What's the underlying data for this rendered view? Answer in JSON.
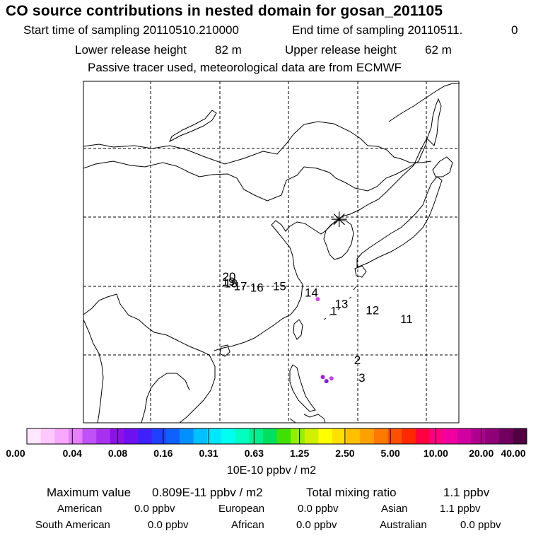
{
  "header": {
    "title": "CO  source contributions in nested domain for gosan_201105",
    "start_label": "Start time of sampling 20110510.210000",
    "end_label": "End time of sampling 20110511.",
    "end_suffix": "0",
    "lower_label": "Lower release height",
    "lower_value": "82 m",
    "upper_label": "Upper release height",
    "upper_value": "62 m",
    "tracer_note": "Passive tracer used, meteorological data are from ECMWF"
  },
  "trajectory_points": [
    {
      "label": "20",
      "lon": 102.0,
      "lat": 24.3
    },
    {
      "label": "19",
      "lon": 101.9,
      "lat": 23.6
    },
    {
      "label": "18",
      "lon": 102.4,
      "lat": 23.3
    },
    {
      "label": "17",
      "lon": 104.5,
      "lat": 22.9
    },
    {
      "label": "16",
      "lon": 108.1,
      "lat": 22.7
    },
    {
      "label": "15",
      "lon": 113.1,
      "lat": 22.9
    },
    {
      "label": "14",
      "lon": 120.1,
      "lat": 22.0
    },
    {
      "label": "13",
      "lon": 126.7,
      "lat": 20.3
    },
    {
      "label": "1",
      "lon": 125.0,
      "lat": 19.3
    },
    {
      "label": "12",
      "lon": 133.5,
      "lat": 19.4
    },
    {
      "label": "11",
      "lon": 141.0,
      "lat": 18.1
    },
    {
      "label": "2",
      "lon": 130.2,
      "lat": 12.1
    },
    {
      "label": "3",
      "lon": 131.2,
      "lat": 9.5
    }
  ],
  "receptor": {
    "name": "gosan",
    "lon": 126.2,
    "lat": 33.3
  },
  "colorbar": {
    "colors": [
      "#ffe8ff",
      "#ffc8ff",
      "#f8a8ff",
      "#e680ff",
      "#c050f8",
      "#a830f0",
      "#8c10e8",
      "#6e10f0",
      "#4020f8",
      "#2040ff",
      "#1060ff",
      "#0090ff",
      "#00c0ff",
      "#00e8ff",
      "#00fff0",
      "#00ffc0",
      "#00f090",
      "#00e060",
      "#40e000",
      "#90f000",
      "#d0f000",
      "#ffff00",
      "#ffe000",
      "#ffc000",
      "#ffa000",
      "#ff7800",
      "#ff5000",
      "#ff2800",
      "#ff0040",
      "#ff0080",
      "#f000a0",
      "#d000a0",
      "#b00090",
      "#900078",
      "#700060",
      "#500040"
    ],
    "tick_labels": [
      "0.00",
      "0.04",
      "0.08",
      "0.16",
      "0.31",
      "0.63",
      "1.25",
      "2.50",
      "5.00",
      "10.00",
      "20.00",
      "40.00"
    ],
    "unit": "10E-10 ppbv / m2"
  },
  "footer": {
    "max_label": "Maximum value",
    "max_value": "0.809E-11 ppbv / m2",
    "total_label": "Total mixing ratio",
    "total_value": "1.1 ppbv",
    "regions": [
      {
        "name": "American",
        "value": "0.0 ppbv"
      },
      {
        "name": "European",
        "value": "0.0 ppbv"
      },
      {
        "name": "Asian",
        "value": "1.1 ppbv"
      },
      {
        "name": "South American",
        "value": "0.0 ppbv"
      },
      {
        "name": "African",
        "value": "0.0 ppbv"
      },
      {
        "name": "Australian",
        "value": "0.0 ppbv"
      }
    ]
  },
  "hotspots": [
    {
      "lon": 121.5,
      "lat": 21.6,
      "color": "#e040f0"
    },
    {
      "lon": 122.6,
      "lat": 10.2,
      "color": "#a020e0"
    },
    {
      "lon": 124.5,
      "lat": 10.0,
      "color": "#c040e8"
    },
    {
      "lon": 123.4,
      "lat": 9.6,
      "color": "#8020d0"
    }
  ]
}
